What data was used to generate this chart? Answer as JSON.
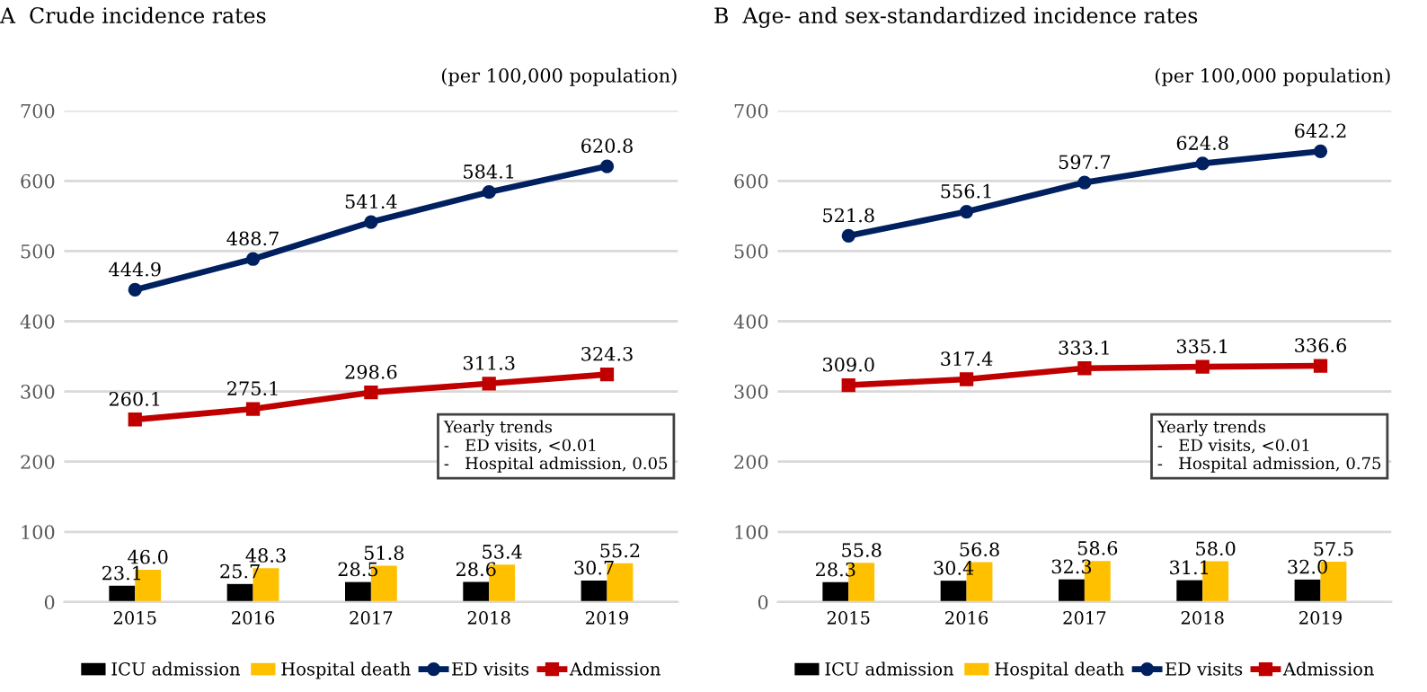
{
  "chart_data": [
    {
      "type": "bar",
      "title": "A  Crude incidence rates",
      "categories": [
        "2015",
        "2016",
        "2017",
        "2018",
        "2019"
      ],
      "ylim": [
        0,
        700
      ],
      "yticks": [
        0,
        100,
        200,
        300,
        400,
        500,
        600,
        700
      ],
      "grid": "y",
      "legend": "bottom",
      "annotations": [
        "(per 100,000 population)",
        "Yearly trends\n-   ED visits, <0.01\n-   Hospital admission, 0.05"
      ],
      "series": [
        {
          "name": "ICU admission",
          "color": "#000000",
          "values": [
            23.1,
            25.7,
            28.5,
            28.6,
            30.7
          ],
          "value_labels": [
            "23.1",
            "25.7",
            "28.5",
            "28.6",
            "30.7"
          ]
        },
        {
          "name": "Hospital death",
          "color": "#ffc000",
          "values": [
            46.0,
            48.3,
            51.8,
            53.4,
            55.2
          ],
          "value_labels": [
            "46.0",
            "48.3",
            "51.8",
            "53.4",
            "55.2"
          ]
        },
        {
          "name": "ED visits",
          "type": "line",
          "marker": "circle",
          "color": "#002060",
          "values": [
            444.9,
            488.7,
            541.4,
            584.1,
            620.8
          ],
          "value_labels": [
            "444.9",
            "488.7",
            "541.4",
            "584.1",
            "620.8"
          ]
        },
        {
          "name": "Admission",
          "type": "line",
          "marker": "square",
          "color": "#c00000",
          "values": [
            260.1,
            275.1,
            298.6,
            311.3,
            324.3
          ],
          "value_labels": [
            "260.1",
            "275.1",
            "298.6",
            "311.3",
            "324.3"
          ]
        }
      ]
    },
    {
      "type": "bar",
      "title": "B  Age- and sex-standardized incidence rates",
      "categories": [
        "2015",
        "2016",
        "2017",
        "2018",
        "2019"
      ],
      "ylim": [
        0,
        700
      ],
      "yticks": [
        0,
        100,
        200,
        300,
        400,
        500,
        600,
        700
      ],
      "grid": "y",
      "legend": "bottom",
      "annotations": [
        "(per 100,000 population)",
        "Yearly trends\n-   ED visits, <0.01\n-   Hospital admission, 0.75"
      ],
      "series": [
        {
          "name": "ICU admission",
          "color": "#000000",
          "values": [
            28.3,
            30.4,
            32.3,
            31.1,
            32.0
          ],
          "value_labels": [
            "28.3",
            "30.4",
            "32.3",
            "31.1",
            "32.0"
          ]
        },
        {
          "name": "Hospital death",
          "color": "#ffc000",
          "values": [
            55.8,
            56.8,
            58.6,
            58.0,
            57.5
          ],
          "value_labels": [
            "55.8",
            "56.8",
            "58.6",
            "58.0",
            "57.5"
          ]
        },
        {
          "name": "ED visits",
          "type": "line",
          "marker": "circle",
          "color": "#002060",
          "values": [
            521.8,
            556.1,
            597.7,
            624.8,
            642.2
          ],
          "value_labels": [
            "521.8",
            "556.1",
            "597.7",
            "624.8",
            "642.2"
          ]
        },
        {
          "name": "Admission",
          "type": "line",
          "marker": "square",
          "color": "#c00000",
          "values": [
            309.0,
            317.4,
            333.1,
            335.1,
            336.6
          ],
          "value_labels": [
            "309.0",
            "317.4",
            "333.1",
            "335.1",
            "336.6"
          ]
        }
      ]
    }
  ]
}
